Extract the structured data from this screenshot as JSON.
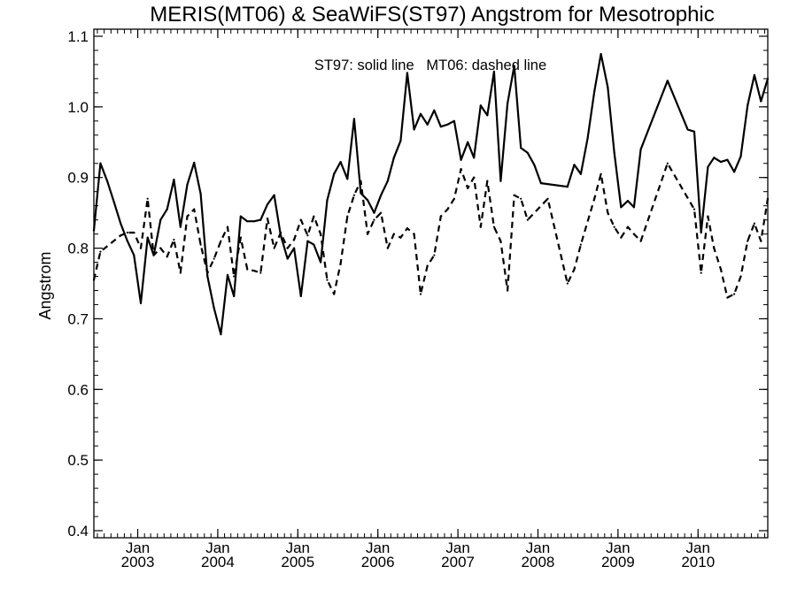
{
  "chart_data": {
    "type": "line",
    "title": "MERIS(MT06) & SeaWiFS(ST97)  Angstrom for Mesotrophic",
    "annotation": "ST97: solid line   MT06: dashed line",
    "xlabel": "",
    "ylabel": "Angstrom",
    "xlim": [
      "2002-06-15",
      "2010-11-15"
    ],
    "ylim": [
      0.39,
      1.11
    ],
    "yticks": [
      "0.4",
      "0.5",
      "0.6",
      "0.7",
      "0.8",
      "0.9",
      "1.0",
      "1.1"
    ],
    "xticks": [
      {
        "date": "2003-01-01",
        "month": "Jan",
        "year": "2003"
      },
      {
        "date": "2004-01-01",
        "month": "Jan",
        "year": "2004"
      },
      {
        "date": "2005-01-01",
        "month": "Jan",
        "year": "2005"
      },
      {
        "date": "2006-01-01",
        "month": "Jan",
        "year": "2006"
      },
      {
        "date": "2007-01-01",
        "month": "Jan",
        "year": "2007"
      },
      {
        "date": "2008-01-01",
        "month": "Jan",
        "year": "2008"
      },
      {
        "date": "2009-01-01",
        "month": "Jan",
        "year": "2009"
      },
      {
        "date": "2010-01-01",
        "month": "Jan",
        "year": "2010"
      }
    ],
    "grid": false,
    "legend": "none",
    "series": [
      {
        "style": "solid",
        "color": "#000000",
        "x": [
          "2002-06-15",
          "2002-07-15",
          "2002-08-15",
          "2002-09-15",
          "2002-10-15",
          "2002-11-15",
          "2002-12-15",
          "2003-01-15",
          "2003-02-15",
          "2003-03-15",
          "2003-04-15",
          "2003-05-15",
          "2003-06-15",
          "2003-07-15",
          "2003-08-15",
          "2003-09-15",
          "2003-10-15",
          "2003-11-15",
          "2003-12-15",
          "2004-01-15",
          "2004-02-15",
          "2004-03-15",
          "2004-04-15",
          "2004-05-15",
          "2004-06-15",
          "2004-07-15",
          "2004-08-15",
          "2004-09-15",
          "2004-10-15",
          "2004-11-15",
          "2004-12-15",
          "2005-01-15",
          "2005-02-15",
          "2005-03-15",
          "2005-04-15",
          "2005-05-15",
          "2005-06-15",
          "2005-07-15",
          "2005-08-15",
          "2005-09-15",
          "2005-10-15",
          "2005-11-15",
          "2005-12-15",
          "2006-01-15",
          "2006-02-15",
          "2006-03-15",
          "2006-04-15",
          "2006-05-15",
          "2006-06-15",
          "2006-07-15",
          "2006-08-15",
          "2006-09-15",
          "2006-10-15",
          "2006-11-15",
          "2006-12-15",
          "2007-01-15",
          "2007-02-15",
          "2007-03-15",
          "2007-04-15",
          "2007-05-15",
          "2007-06-15",
          "2007-07-15",
          "2007-08-15",
          "2007-09-15",
          "2007-10-15",
          "2007-11-15",
          "2007-12-15",
          "2008-01-15",
          "2008-05-15",
          "2008-06-15",
          "2008-07-15",
          "2008-08-15",
          "2008-09-15",
          "2008-10-15",
          "2008-11-15",
          "2008-12-15",
          "2009-01-15",
          "2009-02-15",
          "2009-03-15",
          "2009-04-15",
          "2009-08-15",
          "2009-11-15",
          "2009-12-15",
          "2010-01-15",
          "2010-02-15",
          "2010-03-15",
          "2010-04-15",
          "2010-05-15",
          "2010-06-15",
          "2010-07-15",
          "2010-08-15",
          "2010-09-15",
          "2010-10-15",
          "2010-11-15"
        ],
        "y": [
          0.825,
          0.92,
          0.895,
          0.865,
          0.835,
          0.81,
          0.79,
          0.722,
          0.815,
          0.79,
          0.84,
          0.855,
          0.897,
          0.83,
          0.89,
          0.921,
          0.877,
          0.76,
          0.715,
          0.678,
          0.762,
          0.732,
          0.845,
          0.838,
          0.838,
          0.84,
          0.862,
          0.875,
          0.818,
          0.785,
          0.8,
          0.732,
          0.81,
          0.805,
          0.78,
          0.868,
          0.905,
          0.922,
          0.898,
          0.983,
          0.878,
          0.868,
          0.85,
          0.875,
          0.895,
          0.928,
          0.952,
          1.048,
          0.968,
          0.99,
          0.975,
          0.995,
          0.972,
          0.975,
          0.98,
          0.925,
          0.95,
          0.928,
          1.002,
          0.988,
          1.05,
          0.895,
          1.005,
          1.058,
          0.942,
          0.935,
          0.918,
          0.892,
          0.887,
          0.918,
          0.905,
          0.955,
          1.022,
          1.075,
          1.028,
          0.935,
          0.858,
          0.867,
          0.858,
          0.94,
          1.037,
          0.968,
          0.965,
          0.822,
          0.915,
          0.928,
          0.922,
          0.925,
          0.908,
          0.93,
          1.002,
          1.045,
          1.008,
          1.04
        ]
      },
      {
        "style": "dashed",
        "color": "#000000",
        "x": [
          "2002-06-15",
          "2002-07-15",
          "2002-10-15",
          "2002-11-15",
          "2002-12-15",
          "2003-01-15",
          "2003-02-15",
          "2003-03-15",
          "2003-04-15",
          "2003-05-15",
          "2003-06-15",
          "2003-07-15",
          "2003-08-15",
          "2003-09-15",
          "2003-10-15",
          "2003-11-15",
          "2003-12-15",
          "2004-01-15",
          "2004-02-15",
          "2004-03-15",
          "2004-04-15",
          "2004-05-15",
          "2004-06-15",
          "2004-07-15",
          "2004-08-15",
          "2004-09-15",
          "2004-10-15",
          "2004-11-15",
          "2004-12-15",
          "2005-01-15",
          "2005-02-15",
          "2005-03-15",
          "2005-04-15",
          "2005-05-15",
          "2005-06-15",
          "2005-07-15",
          "2005-08-15",
          "2005-09-15",
          "2005-10-15",
          "2005-11-15",
          "2005-12-15",
          "2006-01-15",
          "2006-02-15",
          "2006-03-15",
          "2006-04-15",
          "2006-05-15",
          "2006-06-15",
          "2006-07-15",
          "2006-08-15",
          "2006-09-15",
          "2006-10-15",
          "2006-11-15",
          "2006-12-15",
          "2007-01-15",
          "2007-02-15",
          "2007-03-15",
          "2007-04-15",
          "2007-05-15",
          "2007-06-15",
          "2007-07-15",
          "2007-08-15",
          "2007-09-15",
          "2007-10-15",
          "2007-11-15",
          "2008-02-15",
          "2008-05-15",
          "2008-06-15",
          "2008-07-15",
          "2008-09-15",
          "2008-10-15",
          "2008-11-15",
          "2008-12-15",
          "2009-01-15",
          "2009-02-15",
          "2009-03-15",
          "2009-04-15",
          "2009-08-15",
          "2009-12-15",
          "2010-01-15",
          "2010-02-15",
          "2010-03-15",
          "2010-04-15",
          "2010-05-15",
          "2010-06-15",
          "2010-07-15",
          "2010-08-15",
          "2010-09-15",
          "2010-10-15",
          "2010-11-15"
        ],
        "y": [
          0.755,
          0.795,
          0.818,
          0.822,
          0.822,
          0.8,
          0.87,
          0.79,
          0.8,
          0.788,
          0.812,
          0.765,
          0.845,
          0.855,
          0.805,
          0.765,
          0.785,
          0.81,
          0.83,
          0.76,
          0.815,
          0.77,
          0.768,
          0.765,
          0.842,
          0.8,
          0.822,
          0.8,
          0.812,
          0.84,
          0.818,
          0.845,
          0.82,
          0.755,
          0.735,
          0.778,
          0.845,
          0.875,
          0.895,
          0.82,
          0.84,
          0.85,
          0.8,
          0.82,
          0.815,
          0.828,
          0.82,
          0.735,
          0.775,
          0.79,
          0.845,
          0.855,
          0.87,
          0.912,
          0.885,
          0.9,
          0.83,
          0.895,
          0.83,
          0.81,
          0.74,
          0.875,
          0.87,
          0.84,
          0.87,
          0.75,
          0.77,
          0.805,
          0.87,
          0.905,
          0.85,
          0.83,
          0.815,
          0.83,
          0.82,
          0.81,
          0.92,
          0.855,
          0.765,
          0.845,
          0.8,
          0.77,
          0.73,
          0.735,
          0.76,
          0.81,
          0.835,
          0.81,
          0.87
        ]
      }
    ]
  }
}
